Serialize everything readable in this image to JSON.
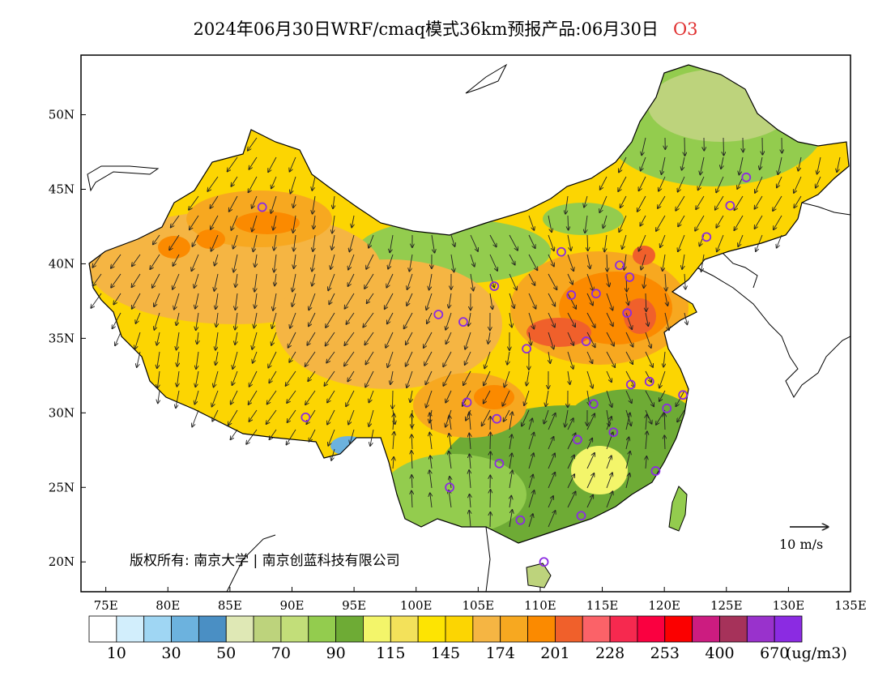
{
  "title": {
    "main": "2024年06月30日WRF/cmaq模式36km预报产品:06月30日",
    "species": "O3"
  },
  "map": {
    "lat_ticks": [
      "50N",
      "45N",
      "40N",
      "35N",
      "30N",
      "25N",
      "20N"
    ],
    "lon_ticks": [
      "75E",
      "80E",
      "85E",
      "90E",
      "95E",
      "100E",
      "105E",
      "110E",
      "115E",
      "120E",
      "125E",
      "130E",
      "135E"
    ],
    "lon_range": [
      73,
      135
    ],
    "lat_range": [
      18,
      54
    ],
    "wind_scale_label": "10 m/s",
    "copyright": "版权所有: 南京大学 | 南京创蓝科技有限公司"
  },
  "colorbar": {
    "colors": [
      "#ffffff",
      "#d2eefc",
      "#9fd6f3",
      "#6cb2de",
      "#4a8fc4",
      "#dfe8b5",
      "#bdd37c",
      "#c2de79",
      "#93cc4e",
      "#6eab35",
      "#f3f56a",
      "#f3e15a",
      "#fde402",
      "#fcd502",
      "#f5b543",
      "#f7a820",
      "#fb8a00",
      "#f0602b",
      "#fb6268",
      "#f6294f",
      "#fa0040",
      "#fb0000",
      "#cc1c80",
      "#a6325a",
      "#9932cc",
      "#8b2be2"
    ],
    "labels": [
      "10",
      "30",
      "50",
      "70",
      "90",
      "115",
      "145",
      "174",
      "201",
      "228",
      "253",
      "400",
      "670"
    ],
    "unit": "(ug/m3)"
  },
  "monitoring_sites": [
    {
      "lon": 87.6,
      "lat": 43.8
    },
    {
      "lon": 91.1,
      "lat": 29.7
    },
    {
      "lon": 101.8,
      "lat": 36.6
    },
    {
      "lon": 103.8,
      "lat": 36.1
    },
    {
      "lon": 106.3,
      "lat": 38.5
    },
    {
      "lon": 111.7,
      "lat": 40.8
    },
    {
      "lon": 104.1,
      "lat": 30.7
    },
    {
      "lon": 106.5,
      "lat": 29.6
    },
    {
      "lon": 106.7,
      "lat": 26.6
    },
    {
      "lon": 102.7,
      "lat": 25.0
    },
    {
      "lon": 108.4,
      "lat": 22.8
    },
    {
      "lon": 110.3,
      "lat": 20.0
    },
    {
      "lon": 113.3,
      "lat": 23.1
    },
    {
      "lon": 119.3,
      "lat": 26.1
    },
    {
      "lon": 115.9,
      "lat": 28.7
    },
    {
      "lon": 113.0,
      "lat": 28.2
    },
    {
      "lon": 114.3,
      "lat": 30.6
    },
    {
      "lon": 117.3,
      "lat": 31.9
    },
    {
      "lon": 118.8,
      "lat": 32.1
    },
    {
      "lon": 121.5,
      "lat": 31.2
    },
    {
      "lon": 120.2,
      "lat": 30.3
    },
    {
      "lon": 108.9,
      "lat": 34.3
    },
    {
      "lon": 113.7,
      "lat": 34.8
    },
    {
      "lon": 117.0,
      "lat": 36.7
    },
    {
      "lon": 112.5,
      "lat": 37.9
    },
    {
      "lon": 114.5,
      "lat": 38.0
    },
    {
      "lon": 116.4,
      "lat": 39.9
    },
    {
      "lon": 117.2,
      "lat": 39.1
    },
    {
      "lon": 123.4,
      "lat": 41.8
    },
    {
      "lon": 125.3,
      "lat": 43.9
    },
    {
      "lon": 126.6,
      "lat": 45.8
    }
  ]
}
